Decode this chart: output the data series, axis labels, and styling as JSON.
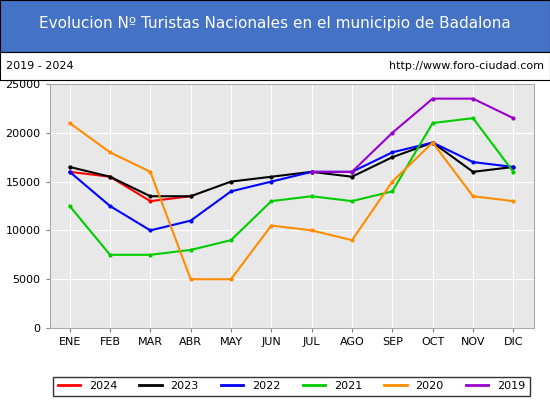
{
  "title": "Evolucion Nº Turistas Nacionales en el municipio de Badalona",
  "subtitle_left": "2019 - 2024",
  "subtitle_right": "http://www.foro-ciudad.com",
  "title_bg_color": "#4472c4",
  "title_text_color": "#ffffff",
  "subtitle_bg_color": "#ffffff",
  "subtitle_text_color": "#000000",
  "plot_bg_color": "#e8e8e8",
  "months": [
    "ENE",
    "FEB",
    "MAR",
    "ABR",
    "MAY",
    "JUN",
    "JUL",
    "AGO",
    "SEP",
    "OCT",
    "NOV",
    "DIC"
  ],
  "ylim": [
    0,
    25000
  ],
  "yticks": [
    0,
    5000,
    10000,
    15000,
    20000,
    25000
  ],
  "series": {
    "2024": {
      "color": "#ff0000",
      "data": [
        16000,
        15500,
        13000,
        13500,
        null,
        null,
        null,
        null,
        null,
        null,
        null,
        null
      ]
    },
    "2023": {
      "color": "#000000",
      "data": [
        16500,
        15500,
        13500,
        13500,
        15000,
        15500,
        16000,
        15500,
        17500,
        19000,
        16000,
        16500
      ]
    },
    "2022": {
      "color": "#0000ff",
      "data": [
        16000,
        12500,
        10000,
        11000,
        14000,
        15000,
        16000,
        16000,
        18000,
        19000,
        17000,
        16500
      ]
    },
    "2021": {
      "color": "#00cc00",
      "data": [
        12500,
        7500,
        7500,
        8000,
        9000,
        13000,
        13500,
        13000,
        14000,
        21000,
        21500,
        16000
      ]
    },
    "2020": {
      "color": "#ff8c00",
      "data": [
        21000,
        18000,
        16000,
        5000,
        5000,
        10500,
        10000,
        9000,
        15000,
        19000,
        13500,
        13000
      ]
    },
    "2019": {
      "color": "#9900cc",
      "data": [
        null,
        null,
        null,
        null,
        null,
        null,
        16000,
        16000,
        20000,
        23500,
        23500,
        21500
      ]
    }
  },
  "legend_order": [
    "2024",
    "2023",
    "2022",
    "2021",
    "2020",
    "2019"
  ]
}
